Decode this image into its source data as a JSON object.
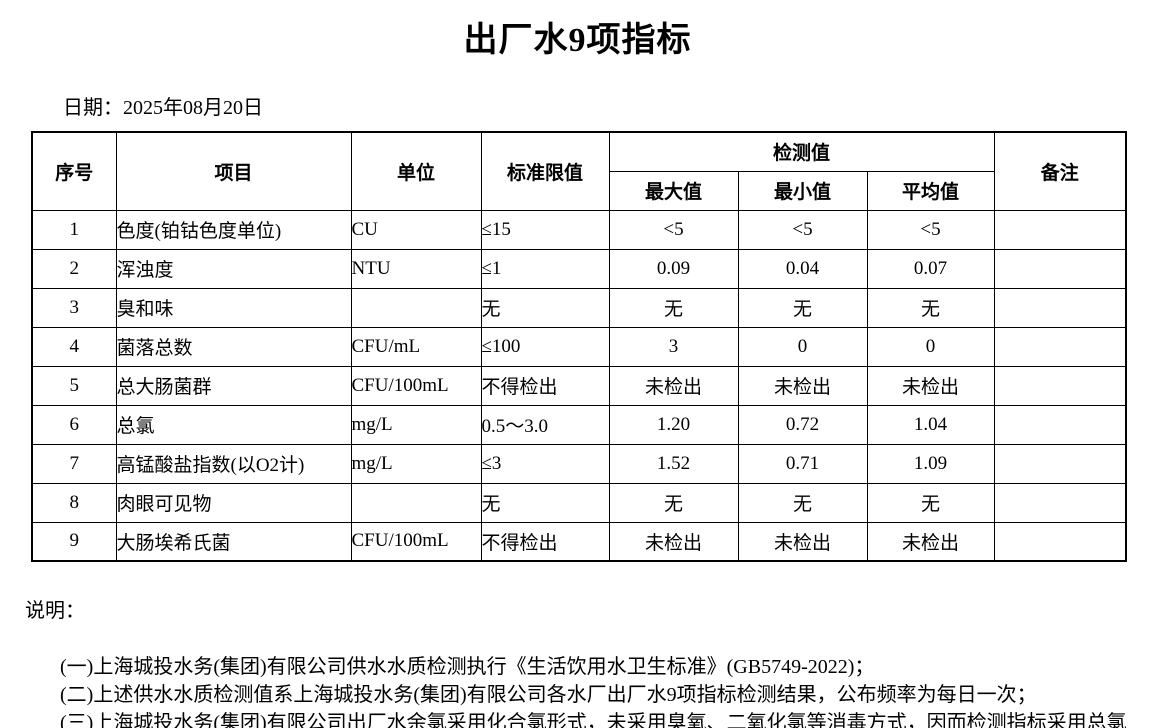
{
  "page": {
    "title": "出厂水9项指标",
    "date_line": "日期：2025年08月20日"
  },
  "table": {
    "headers": {
      "no": "序号",
      "item": "项目",
      "unit": "单位",
      "limit": "标准限值",
      "detection": "检测值",
      "max": "最大值",
      "min": "最小值",
      "avg": "平均值",
      "remark": "备注"
    },
    "rows": [
      {
        "no": "1",
        "item": "色度(铂钴色度单位)",
        "unit": "CU",
        "limit": "≤15",
        "max": "<5",
        "min": "<5",
        "avg": "<5",
        "remark": ""
      },
      {
        "no": "2",
        "item": "浑浊度",
        "unit": "NTU",
        "limit": "≤1",
        "max": "0.09",
        "min": "0.04",
        "avg": "0.07",
        "remark": ""
      },
      {
        "no": "3",
        "item": "臭和味",
        "unit": "",
        "limit": "无",
        "max": "无",
        "min": "无",
        "avg": "无",
        "remark": ""
      },
      {
        "no": "4",
        "item": "菌落总数",
        "unit": "CFU/mL",
        "limit": "≤100",
        "max": "3",
        "min": "0",
        "avg": "0",
        "remark": ""
      },
      {
        "no": "5",
        "item": "总大肠菌群",
        "unit": "CFU/100mL",
        "limit": "不得检出",
        "max": "未检出",
        "min": "未检出",
        "avg": "未检出",
        "remark": ""
      },
      {
        "no": "6",
        "item": "总氯",
        "unit": "mg/L",
        "limit": "0.5～3.0",
        "max": "1.20",
        "min": "0.72",
        "avg": "1.04",
        "remark": ""
      },
      {
        "no": "7",
        "item": "高锰酸盐指数(以O2计)",
        "unit": "mg/L",
        "limit": "≤3",
        "max": "1.52",
        "min": "0.71",
        "avg": "1.09",
        "remark": ""
      },
      {
        "no": "8",
        "item": "肉眼可见物",
        "unit": "",
        "limit": "无",
        "max": "无",
        "min": "无",
        "avg": "无",
        "remark": ""
      },
      {
        "no": "9",
        "item": "大肠埃希氏菌",
        "unit": "CFU/100mL",
        "limit": "不得检出",
        "max": "未检出",
        "min": "未检出",
        "avg": "未检出",
        "remark": ""
      }
    ]
  },
  "notes": {
    "label": "说明：",
    "items": [
      "(一)上海城投水务(集团)有限公司供水水质检测执行《生活饮用水卫生标准》(GB5749-2022)；",
      "(二)上述供水水质检测值系上海城投水务(集团)有限公司各水厂出厂水9项指标检测结果，公布频率为每日一次；",
      "(三)上海城投水务(集团)有限公司出厂水余氯采用化合氯形式，未采用臭氧、二氧化氯等消毒方式，因而检测指标采用总氯"
    ]
  }
}
